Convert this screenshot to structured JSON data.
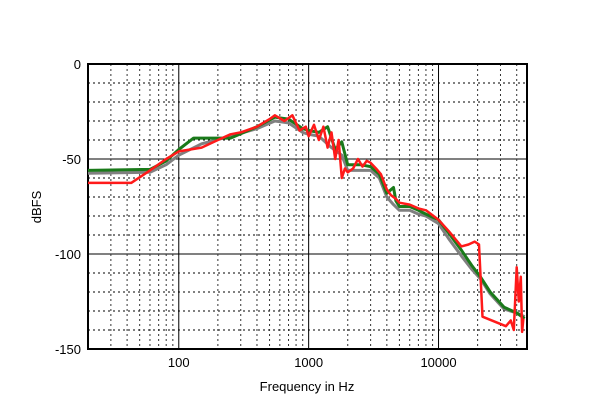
{
  "chart_data": {
    "type": "line",
    "title": "",
    "xlabel": "Frequency in Hz",
    "ylabel": "dBFS",
    "xscale": "log",
    "xlim": [
      20,
      48000
    ],
    "ylim": [
      -150,
      0
    ],
    "xticks": [
      {
        "value": 100,
        "label": "100"
      },
      {
        "value": 1000,
        "label": "1000"
      },
      {
        "value": 10000,
        "label": "10000"
      }
    ],
    "yticks": [
      {
        "value": 0,
        "label": "0"
      },
      {
        "value": -50,
        "label": "-50"
      },
      {
        "value": -100,
        "label": "-100"
      },
      {
        "value": -150,
        "label": "-150"
      }
    ],
    "grid": true,
    "legend": "none",
    "series": [
      {
        "name": "gray",
        "color": "#808080",
        "points": [
          [
            20,
            -57.5
          ],
          [
            60,
            -57
          ],
          [
            80,
            -53
          ],
          [
            100,
            -48
          ],
          [
            150,
            -42
          ],
          [
            250,
            -38
          ],
          [
            400,
            -34
          ],
          [
            550,
            -30
          ],
          [
            700,
            -31
          ],
          [
            900,
            -36
          ],
          [
            1000,
            -37
          ],
          [
            1200,
            -38
          ],
          [
            1500,
            -44
          ],
          [
            1800,
            -48
          ],
          [
            2000,
            -56
          ],
          [
            2500,
            -56
          ],
          [
            3000,
            -56
          ],
          [
            3500,
            -60
          ],
          [
            4000,
            -70
          ],
          [
            4500,
            -74
          ],
          [
            5000,
            -77
          ],
          [
            6000,
            -77
          ],
          [
            7000,
            -79
          ],
          [
            8000,
            -80
          ],
          [
            10000,
            -84
          ],
          [
            12000,
            -92
          ],
          [
            15000,
            -101
          ],
          [
            18000,
            -108
          ],
          [
            21000,
            -113
          ],
          [
            25000,
            -121
          ],
          [
            32000,
            -129
          ],
          [
            40000,
            -131
          ],
          [
            46000,
            -133
          ]
        ]
      },
      {
        "name": "green",
        "color": "#1a7a1a",
        "points": [
          [
            20,
            -56
          ],
          [
            60,
            -55.5
          ],
          [
            80,
            -51
          ],
          [
            100,
            -45
          ],
          [
            130,
            -39
          ],
          [
            250,
            -39
          ],
          [
            400,
            -33
          ],
          [
            550,
            -28
          ],
          [
            700,
            -29
          ],
          [
            900,
            -34
          ],
          [
            1000,
            -35
          ],
          [
            1200,
            -36
          ],
          [
            1400,
            -33
          ],
          [
            1600,
            -45
          ],
          [
            1800,
            -41
          ],
          [
            2000,
            -53
          ],
          [
            2500,
            -53
          ],
          [
            3000,
            -54
          ],
          [
            3500,
            -58
          ],
          [
            4000,
            -68
          ],
          [
            4500,
            -65
          ],
          [
            4700,
            -72
          ],
          [
            5000,
            -75
          ],
          [
            6000,
            -75
          ],
          [
            7000,
            -77
          ],
          [
            8000,
            -79
          ],
          [
            10000,
            -82
          ],
          [
            12000,
            -89
          ],
          [
            15000,
            -98
          ],
          [
            18000,
            -106
          ],
          [
            21000,
            -112
          ],
          [
            25000,
            -120
          ],
          [
            32000,
            -128
          ],
          [
            40000,
            -131
          ],
          [
            46000,
            -134
          ]
        ]
      },
      {
        "name": "red",
        "color": "#ff1a1a",
        "points": [
          [
            20,
            -62.6
          ],
          [
            43,
            -62.6
          ],
          [
            60,
            -56
          ],
          [
            80,
            -50
          ],
          [
            100,
            -46
          ],
          [
            150,
            -44
          ],
          [
            200,
            -40
          ],
          [
            250,
            -37
          ],
          [
            300,
            -36
          ],
          [
            400,
            -33
          ],
          [
            500,
            -29
          ],
          [
            550,
            -27
          ],
          [
            650,
            -30
          ],
          [
            750,
            -27
          ],
          [
            850,
            -35
          ],
          [
            950,
            -33
          ],
          [
            1000,
            -38
          ],
          [
            1100,
            -32
          ],
          [
            1200,
            -40
          ],
          [
            1300,
            -33
          ],
          [
            1400,
            -44
          ],
          [
            1500,
            -36
          ],
          [
            1600,
            -50
          ],
          [
            1700,
            -40
          ],
          [
            1800,
            -60
          ],
          [
            1900,
            -55
          ],
          [
            2000,
            -57
          ],
          [
            2200,
            -55
          ],
          [
            2400,
            -50
          ],
          [
            2600,
            -54
          ],
          [
            2800,
            -51
          ],
          [
            3000,
            -52
          ],
          [
            3300,
            -55
          ],
          [
            3600,
            -58
          ],
          [
            4000,
            -66
          ],
          [
            4300,
            -69
          ],
          [
            4700,
            -71
          ],
          [
            5000,
            -73
          ],
          [
            6000,
            -74
          ],
          [
            7000,
            -76
          ],
          [
            8000,
            -77
          ],
          [
            10000,
            -82
          ],
          [
            12000,
            -88
          ],
          [
            15000,
            -96
          ],
          [
            17000,
            -95
          ],
          [
            19000,
            -93.5
          ],
          [
            20500,
            -95
          ],
          [
            21800,
            -133
          ],
          [
            33000,
            -138
          ],
          [
            36000,
            -135
          ],
          [
            38000,
            -140
          ],
          [
            40000,
            -107
          ],
          [
            41500,
            -125
          ],
          [
            43000,
            -112
          ],
          [
            44000,
            -141
          ],
          [
            45000,
            -134
          ]
        ]
      }
    ]
  }
}
